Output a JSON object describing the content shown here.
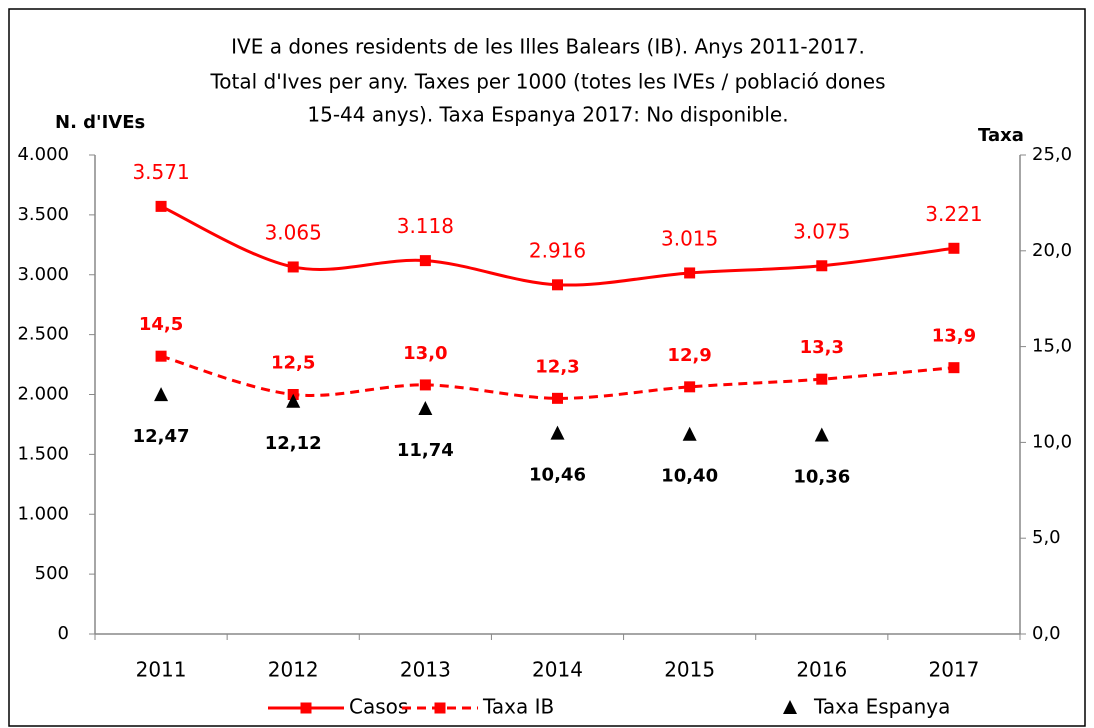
{
  "chart_data": {
    "type": "line",
    "title": [
      "IVE a dones residents de les Illes Balears (IB).  Anys 2011-2017.",
      "Total d'Ives per any. Taxes per 1000 (totes les IVEs / població dones",
      "15-44 anys). Taxa Espanya 2017: No disponible."
    ],
    "ylabel": "N. d'IVEs",
    "y2label": "Taxa",
    "categories": [
      "2011",
      "2012",
      "2013",
      "2014",
      "2015",
      "2016",
      "2017"
    ],
    "ylim": [
      0,
      4000
    ],
    "yticks": [
      0,
      500,
      {
        "value": 1000,
        "label": "1.000"
      },
      {
        "value": 1500,
        "label": "1.500"
      },
      {
        "value": 2000,
        "label": "2.000"
      },
      {
        "value": 2500,
        "label": "2.500"
      },
      {
        "value": 3000,
        "label": "3.000"
      },
      {
        "value": 3500,
        "label": "3.500"
      },
      {
        "value": 4000,
        "label": "4.000"
      }
    ],
    "y2lim": [
      0,
      25
    ],
    "y2ticks": [
      {
        "value": 0,
        "label": "0,0"
      },
      {
        "value": 5,
        "label": "5,0"
      },
      {
        "value": 10,
        "label": "10,0"
      },
      {
        "value": 15,
        "label": "15,0"
      },
      {
        "value": 20,
        "label": "20,0"
      },
      {
        "value": 25,
        "label": "25,0"
      }
    ],
    "legend": "bottom",
    "series": [
      {
        "name": "Casos",
        "color": "#ff0000",
        "line": "solid",
        "marker": "square",
        "values": [
          3571,
          3065,
          3118,
          2916,
          3015,
          3075,
          3221
        ],
        "value_labels": [
          "3.571",
          "3.065",
          "3.118",
          "2.916",
          "3.015",
          "3.075",
          "3.221"
        ]
      },
      {
        "name": "Taxa IB",
        "color": "#ff0000",
        "line": "dashed",
        "marker": "square",
        "axis": "y2",
        "values": [
          14.5,
          12.5,
          13.0,
          12.3,
          12.9,
          13.3,
          13.9
        ],
        "value_labels": [
          "14,5",
          "12,5",
          "13,0",
          "12,3",
          "12,9",
          "13,3",
          "13,9"
        ]
      },
      {
        "name": "Taxa Espanya",
        "color": "#000000",
        "line": "none",
        "marker": "triangle",
        "axis": "y2",
        "values": [
          12.47,
          12.12,
          11.74,
          10.46,
          10.4,
          10.36,
          null
        ],
        "value_labels": [
          "12,47",
          "12,12",
          "11,74",
          "10,46",
          "10,40",
          "10,36",
          null
        ]
      }
    ]
  }
}
